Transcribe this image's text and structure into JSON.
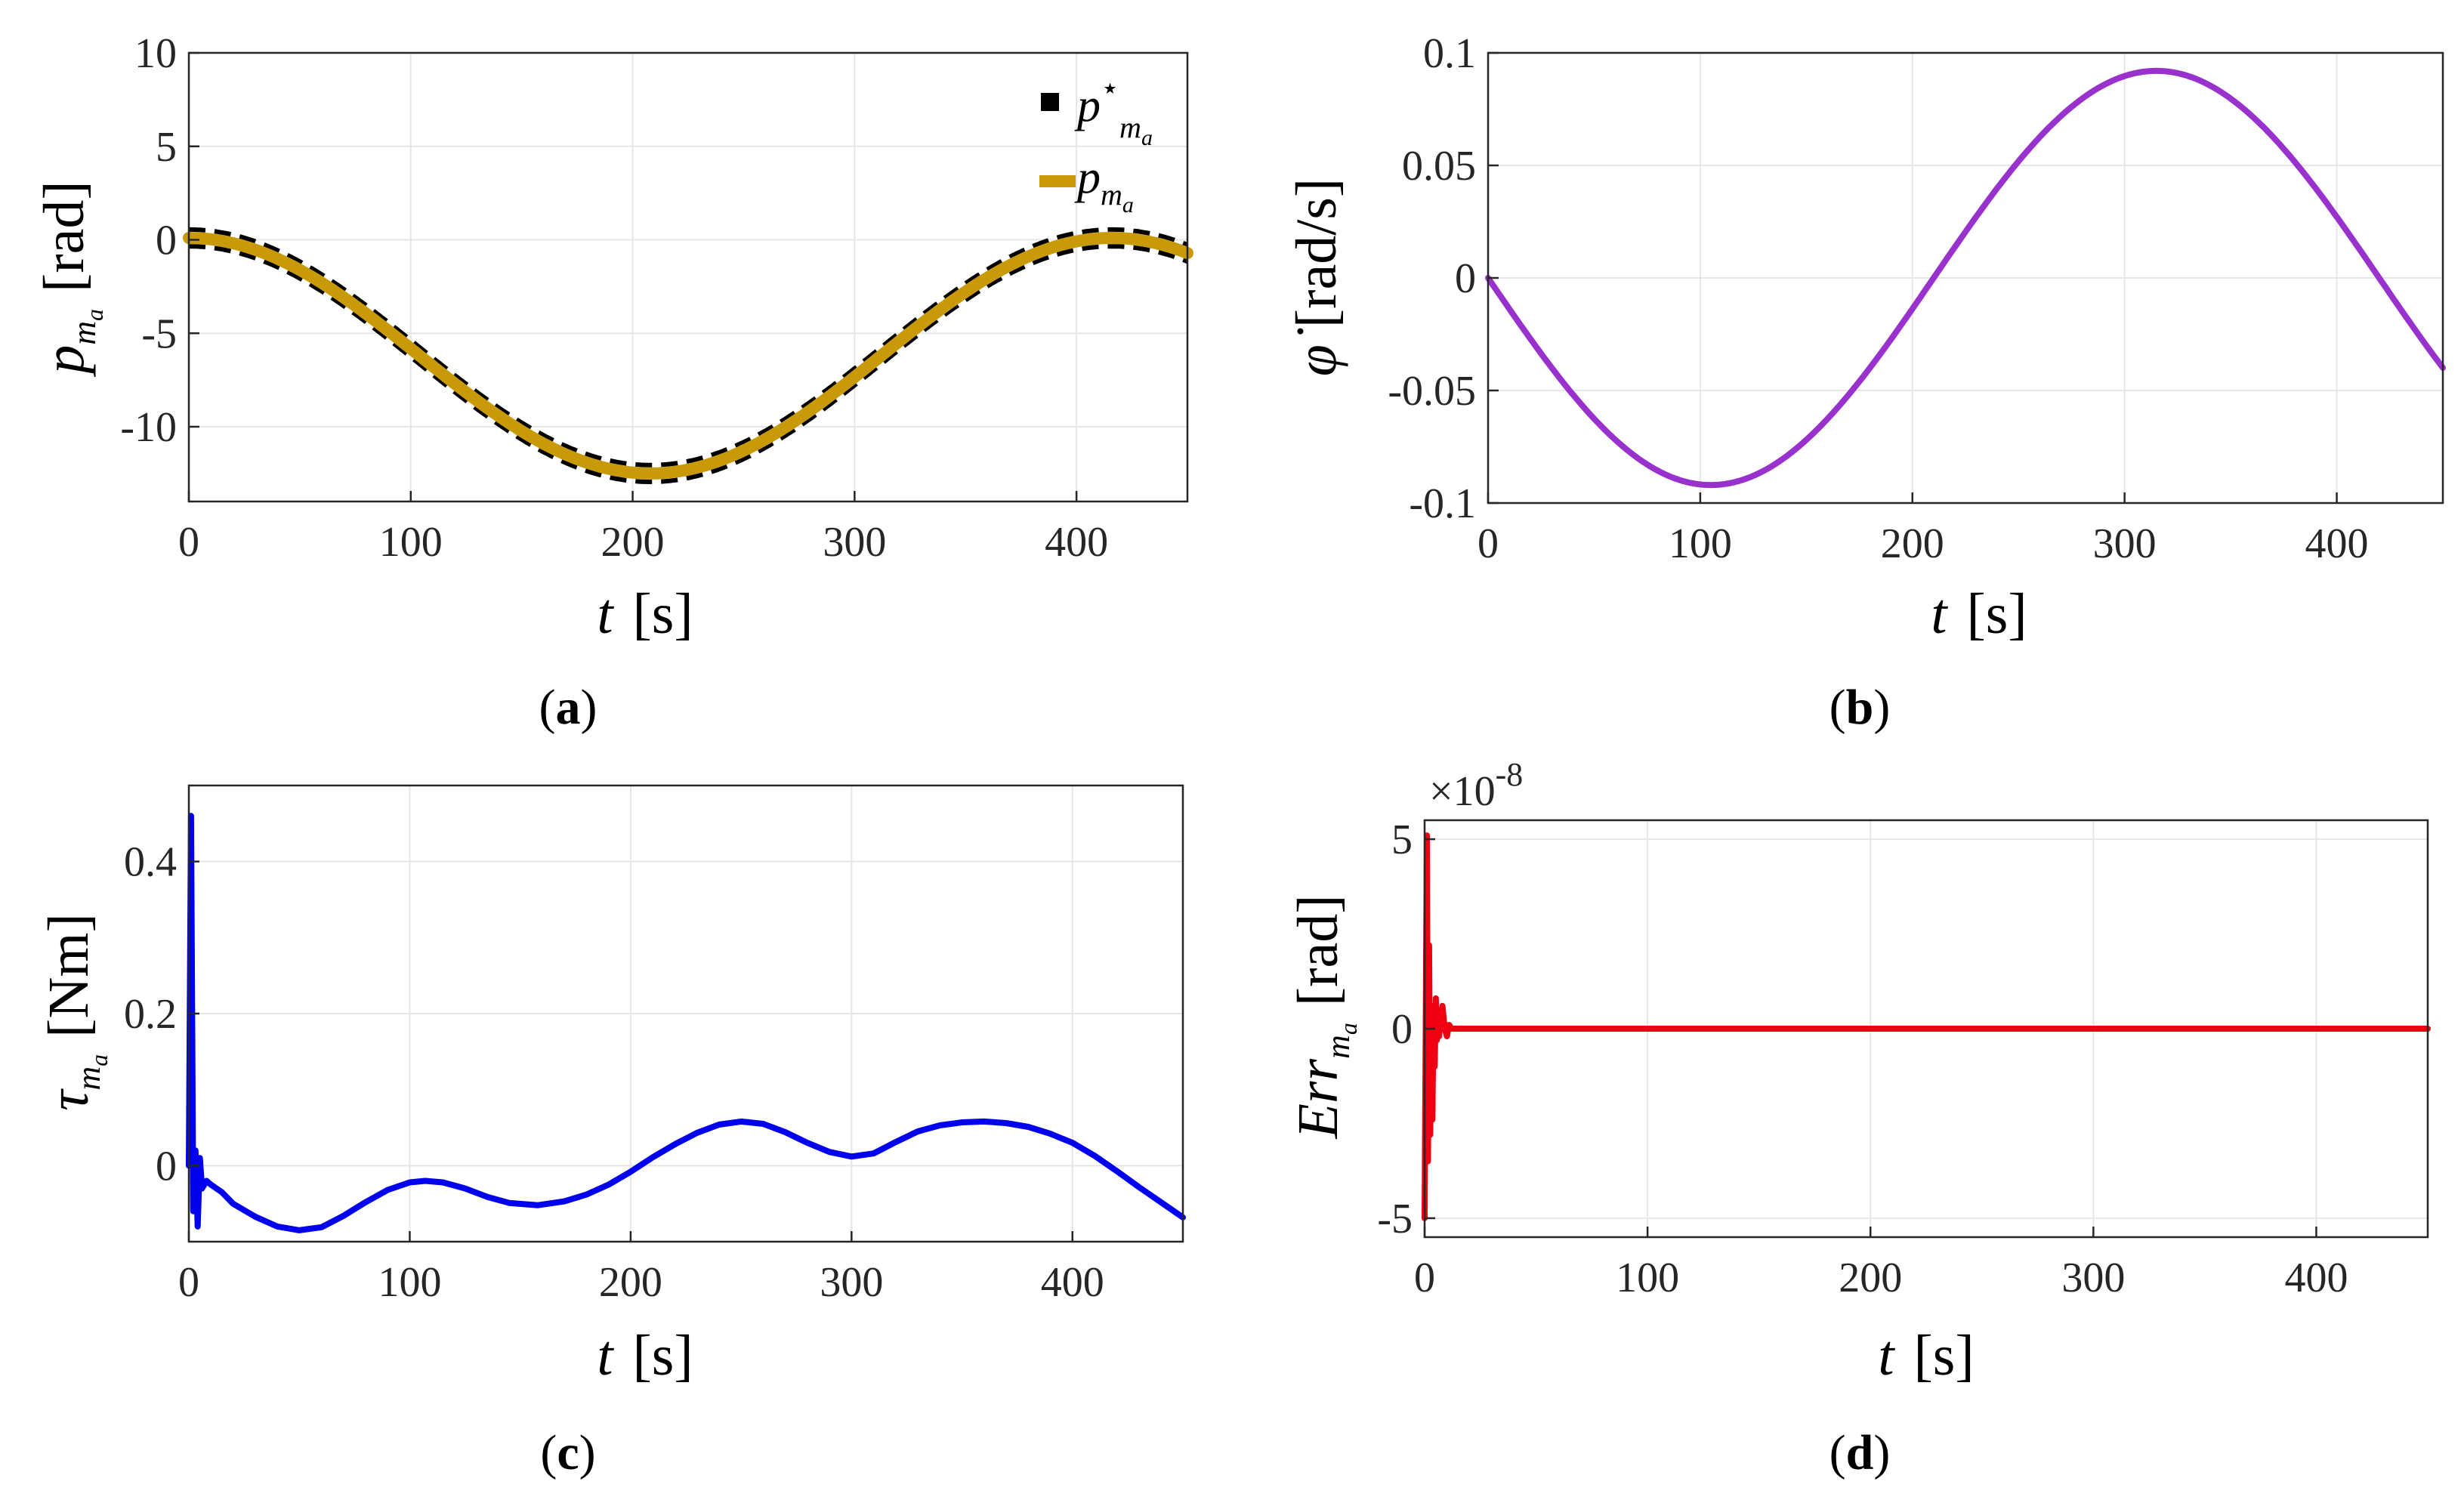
{
  "figure": {
    "panels": [
      "a",
      "b",
      "c",
      "d"
    ]
  },
  "chart_data": [
    {
      "id": "a",
      "type": "line",
      "caption": "(a)",
      "caption_letter": "a",
      "xlabel_var": "t",
      "xlabel_unit": "[s]",
      "ylabel_var": "p",
      "ylabel_sub": "m",
      "ylabel_subsub": "a",
      "ylabel_unit": "[rad]",
      "xlim": [
        0,
        450
      ],
      "ylim": [
        -14,
        10
      ],
      "xticks": [
        0,
        100,
        200,
        300,
        400
      ],
      "yticks": [
        10,
        5,
        0,
        -5,
        -10
      ],
      "ytick_labels": [
        "10",
        "5",
        "0",
        "-5",
        "-10"
      ],
      "legend": [
        {
          "label_var": "p",
          "label_sup": "⋆",
          "label_sub": "m",
          "label_subsub": "a",
          "style": "square-marker",
          "color": "#000000"
        },
        {
          "label_var": "p",
          "label_sup": "",
          "label_sub": "m",
          "label_subsub": "a",
          "style": "line",
          "color": "#c89a0a"
        }
      ],
      "series": [
        {
          "name": "p_ma*",
          "color": "#000000",
          "style": "dashed-band",
          "band_halfwidth": 0.45,
          "model": {
            "form": "center+amp*cos(2*pi*(t-t0)/period)",
            "center": -6.2,
            "amp": 6.3,
            "t0": 0,
            "period": 416
          }
        },
        {
          "name": "p_ma",
          "color": "#c89a0a",
          "style": "solid",
          "model": {
            "form": "center+amp*cos(2*pi*(t-t0)/period)",
            "center": -6.2,
            "amp": 6.3,
            "t0": 0,
            "period": 416
          }
        }
      ]
    },
    {
      "id": "b",
      "type": "line",
      "caption": "(b)",
      "caption_letter": "b",
      "xlabel_var": "t",
      "xlabel_unit": "[s]",
      "ylabel_var": "φ̇",
      "ylabel_unit": "[rad/s]",
      "xlim": [
        0,
        450
      ],
      "ylim": [
        -0.1,
        0.1
      ],
      "xticks": [
        0,
        100,
        200,
        300,
        400
      ],
      "yticks": [
        0.1,
        0.05,
        0,
        -0.05,
        -0.1
      ],
      "ytick_labels": [
        "0.1",
        "0.05",
        "0",
        "-0.05",
        "-0.1"
      ],
      "series": [
        {
          "name": "phi_dot",
          "color": "#9932cc",
          "style": "solid",
          "model": {
            "form": "-amp*sin(2*pi*t/period)",
            "amp": 0.092,
            "period": 420
          }
        }
      ]
    },
    {
      "id": "c",
      "type": "line",
      "caption": "(c)",
      "caption_letter": "c",
      "xlabel_var": "t",
      "xlabel_unit": "[s]",
      "ylabel_var": "τ",
      "ylabel_sub": "m",
      "ylabel_subsub": "a",
      "ylabel_unit": "[Nm]",
      "xlim": [
        0,
        450
      ],
      "ylim": [
        -0.1,
        0.5
      ],
      "xticks": [
        0,
        100,
        200,
        300,
        400
      ],
      "yticks": [
        0.4,
        0.2,
        0
      ],
      "ytick_labels": [
        "0.4",
        "0.2",
        "0"
      ],
      "series": [
        {
          "name": "tau_ma",
          "color": "#0000ee",
          "style": "solid",
          "x": [
            0,
            1,
            2,
            3,
            4,
            5,
            6,
            8,
            10,
            15,
            20,
            30,
            40,
            50,
            60,
            70,
            80,
            90,
            100,
            107,
            115,
            125,
            135,
            145,
            158,
            170,
            180,
            190,
            200,
            210,
            220,
            230,
            240,
            250,
            260,
            270,
            280,
            290,
            300,
            310,
            320,
            330,
            340,
            350,
            360,
            370,
            380,
            390,
            400,
            410,
            420,
            430,
            440,
            450
          ],
          "y": [
            0.0,
            0.46,
            -0.06,
            0.02,
            -0.08,
            0.01,
            -0.03,
            -0.02,
            -0.025,
            -0.035,
            -0.05,
            -0.067,
            -0.08,
            -0.085,
            -0.081,
            -0.066,
            -0.048,
            -0.032,
            -0.022,
            -0.02,
            -0.022,
            -0.03,
            -0.041,
            -0.049,
            -0.052,
            -0.047,
            -0.038,
            -0.025,
            -0.008,
            0.011,
            0.028,
            0.043,
            0.054,
            0.058,
            0.055,
            0.044,
            0.03,
            0.018,
            0.012,
            0.016,
            0.031,
            0.045,
            0.053,
            0.057,
            0.058,
            0.056,
            0.051,
            0.042,
            0.03,
            0.013,
            -0.007,
            -0.028,
            -0.048,
            -0.068
          ]
        }
      ]
    },
    {
      "id": "d",
      "type": "line",
      "caption": "(d)",
      "caption_letter": "d",
      "xlabel_var": "t",
      "xlabel_unit": "[s]",
      "ylabel_var": "Err",
      "ylabel_sub": "m",
      "ylabel_subsub": "a",
      "ylabel_unit": "[rad]",
      "exponent_base": "×10",
      "exponent_power": "-8",
      "xlim": [
        0,
        450
      ],
      "ylim": [
        -5.5,
        5.5
      ],
      "xticks": [
        0,
        100,
        200,
        300,
        400
      ],
      "yticks": [
        5,
        0,
        -5
      ],
      "ytick_labels": [
        "5",
        "0",
        "-5"
      ],
      "series": [
        {
          "name": "Err_ma",
          "color": "#ee0011",
          "style": "solid",
          "x": [
            0,
            0.5,
            1.0,
            1.5,
            2.0,
            2.5,
            3.0,
            3.5,
            4.0,
            4.5,
            5.0,
            5.5,
            6.0,
            6.5,
            7.0,
            7.5,
            8.0,
            9.0,
            10.0,
            11.0,
            12.0,
            14.0,
            20.0,
            50.0,
            450.0
          ],
          "y": [
            -5.0,
            0.0,
            5.1,
            -3.5,
            2.2,
            -2.8,
            0.5,
            -2.4,
            0.6,
            -1.0,
            0.8,
            -0.3,
            0.4,
            -0.2,
            0.5,
            0.1,
            0.6,
            0.0,
            -0.2,
            0.1,
            0.0,
            0.0,
            0.0,
            0.0,
            0.0
          ]
        }
      ]
    }
  ]
}
